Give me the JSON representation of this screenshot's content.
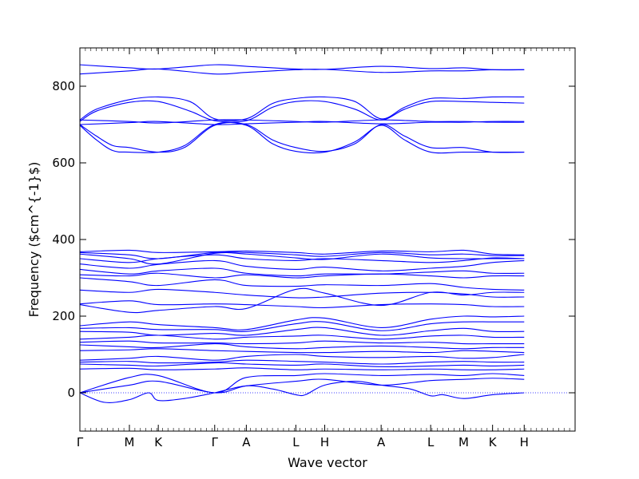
{
  "chart_data": {
    "type": "line",
    "title": "",
    "xlabel": "Wave vector",
    "ylabel": "Frequency ($cm^{-1}$)",
    "ylim": [
      -100,
      900
    ],
    "xlim": [
      0,
      18
    ],
    "grid": false,
    "line_color": "#0000ff",
    "zero_line_color": "#0000ff",
    "x_ticks": [
      {
        "label": "Γ",
        "x": 0
      },
      {
        "label": "M",
        "x": 1.8
      },
      {
        "label": "K",
        "x": 2.85
      },
      {
        "label": "Γ",
        "x": 4.9
      },
      {
        "label": "A",
        "x": 6.05
      },
      {
        "label": "L",
        "x": 7.85
      },
      {
        "label": "H",
        "x": 8.9
      },
      {
        "label": "A",
        "x": 10.95
      },
      {
        "label": "L",
        "x": 12.75
      },
      {
        "label": "M",
        "x": 13.95
      },
      {
        "label": "K",
        "x": 15.0
      },
      {
        "label": "H",
        "x": 16.15
      }
    ],
    "y_ticks": [
      0,
      200,
      400,
      600,
      800
    ],
    "series": [
      {
        "x": [
          0,
          1.8,
          2.85,
          4.9,
          6.05,
          7.85,
          8.9,
          10.95,
          12.75,
          13.95,
          15.0,
          16.15
        ],
        "values": [
          856,
          848,
          845,
          856,
          852,
          845,
          844,
          852,
          846,
          848,
          843,
          843
        ]
      },
      {
        "x": [
          0,
          1.8,
          2.85,
          4.9,
          6.05,
          7.85,
          8.9,
          10.95,
          12.75,
          13.95,
          15.0,
          16.15
        ],
        "values": [
          832,
          840,
          845,
          832,
          836,
          843,
          844,
          836,
          840,
          840,
          843,
          843
        ]
      },
      {
        "x": [
          0,
          0.6,
          1.8,
          2.85,
          4.0,
          4.9,
          6.05,
          7.0,
          7.85,
          8.9,
          10.0,
          10.95,
          11.8,
          12.75,
          13.95,
          15.0,
          16.15
        ],
        "values": [
          712,
          740,
          765,
          772,
          760,
          715,
          715,
          755,
          768,
          772,
          760,
          715,
          745,
          768,
          768,
          772,
          772
        ]
      },
      {
        "x": [
          0,
          0.6,
          1.8,
          2.85,
          4.0,
          4.9,
          6.05,
          7.0,
          7.85,
          8.9,
          10.0,
          10.95,
          11.8,
          12.75,
          13.95,
          15.0,
          16.15
        ],
        "values": [
          708,
          735,
          758,
          760,
          735,
          710,
          710,
          745,
          760,
          760,
          740,
          712,
          740,
          760,
          760,
          758,
          756
        ]
      },
      {
        "x": [
          0,
          1.8,
          2.85,
          4.9,
          6.05,
          7.85,
          8.9,
          10.95,
          12.75,
          13.95,
          15.0,
          16.15
        ],
        "values": [
          712,
          708,
          704,
          712,
          712,
          708,
          706,
          712,
          708,
          708,
          706,
          706
        ]
      },
      {
        "x": [
          0,
          1.8,
          2.85,
          4.9,
          6.05,
          7.85,
          8.9,
          10.95,
          12.75,
          13.95,
          15.0,
          16.15
        ],
        "values": [
          700,
          705,
          708,
          700,
          702,
          706,
          708,
          702,
          706,
          706,
          708,
          708
        ]
      },
      {
        "x": [
          0,
          0.6,
          1.2,
          1.8,
          2.85,
          3.8,
          4.9,
          6.05,
          7.0,
          7.85,
          8.9,
          10.0,
          10.95,
          11.8,
          12.75,
          13.95,
          15.0,
          16.15
        ],
        "values": [
          700,
          670,
          645,
          640,
          628,
          640,
          698,
          700,
          660,
          640,
          630,
          650,
          700,
          670,
          640,
          640,
          628,
          628
        ]
      },
      {
        "x": [
          0,
          0.6,
          1.2,
          1.8,
          2.85,
          3.8,
          4.9,
          6.05,
          7.0,
          7.85,
          8.9,
          10.0,
          10.95,
          11.8,
          12.75,
          13.95,
          15.0,
          16.15
        ],
        "values": [
          698,
          660,
          632,
          628,
          628,
          645,
          700,
          698,
          650,
          630,
          628,
          655,
          698,
          660,
          628,
          628,
          628,
          628
        ]
      },
      {
        "x": [
          0,
          1.8,
          2.85,
          4.9,
          6.05,
          7.85,
          8.9,
          10.95,
          12.75,
          13.95,
          15.0,
          16.15
        ],
        "values": [
          368,
          372,
          366,
          368,
          370,
          366,
          362,
          370,
          368,
          372,
          362,
          360
        ]
      },
      {
        "x": [
          0,
          1.8,
          2.85,
          4.9,
          6.05,
          7.85,
          8.9,
          10.95,
          12.75,
          13.95,
          15.0,
          16.15
        ],
        "values": [
          366,
          360,
          350,
          366,
          366,
          360,
          356,
          366,
          360,
          362,
          358,
          358
        ]
      },
      {
        "x": [
          0,
          1.8,
          2.85,
          4.9,
          6.05,
          7.85,
          8.9,
          10.95,
          12.75,
          13.95,
          15.0,
          16.15
        ],
        "values": [
          362,
          350,
          336,
          364,
          362,
          352,
          348,
          362,
          352,
          350,
          350,
          350
        ]
      },
      {
        "x": [
          0,
          1.8,
          2.85,
          4.9,
          6.05,
          7.85,
          8.9,
          10.95,
          12.75,
          13.95,
          15.0,
          16.15
        ],
        "values": [
          350,
          340,
          350,
          360,
          350,
          345,
          350,
          345,
          340,
          345,
          352,
          350
        ]
      },
      {
        "x": [
          0,
          1.8,
          2.85,
          4.9,
          6.05,
          7.85,
          8.9,
          10.95,
          12.75,
          13.95,
          15.0,
          16.15
        ],
        "values": [
          336,
          325,
          335,
          345,
          330,
          322,
          328,
          318,
          325,
          330,
          340,
          345
        ]
      },
      {
        "x": [
          0,
          1.8,
          2.85,
          4.9,
          6.05,
          7.85,
          8.9,
          10.95,
          12.75,
          13.95,
          15.0,
          16.15
        ],
        "values": [
          322,
          310,
          318,
          325,
          312,
          305,
          310,
          310,
          315,
          318,
          312,
          312
        ]
      },
      {
        "x": [
          0,
          1.8,
          2.85,
          4.9,
          6.05,
          7.85,
          8.9,
          10.95,
          12.75,
          13.95,
          15.0,
          16.15
        ],
        "values": [
          308,
          305,
          312,
          300,
          308,
          300,
          305,
          310,
          305,
          300,
          305,
          305
        ]
      },
      {
        "x": [
          0,
          1.8,
          2.85,
          4.9,
          6.05,
          7.85,
          8.9,
          10.95,
          12.75,
          13.95,
          15.0,
          16.15
        ],
        "values": [
          300,
          290,
          280,
          295,
          280,
          278,
          282,
          280,
          285,
          275,
          270,
          268
        ]
      },
      {
        "x": [
          0,
          1.8,
          2.85,
          4.9,
          6.05,
          7.85,
          8.9,
          10.95,
          12.75,
          13.95,
          15.0,
          16.15
        ],
        "values": [
          268,
          262,
          270,
          262,
          255,
          248,
          250,
          260,
          262,
          258,
          250,
          250
        ]
      },
      {
        "x": [
          0,
          1.8,
          2.85,
          4.9,
          6.05,
          7.85,
          8.9,
          10.95,
          12.75,
          13.95,
          15.0,
          16.15
        ],
        "values": [
          232,
          240,
          230,
          232,
          230,
          225,
          222,
          230,
          232,
          230,
          225,
          225
        ]
      },
      {
        "x": [
          0,
          1.8,
          2.85,
          4.9,
          6.05,
          7.85,
          8.9,
          10.95,
          12.75,
          13.95,
          15.0,
          16.15
        ],
        "values": [
          230,
          210,
          215,
          225,
          220,
          270,
          260,
          228,
          262,
          255,
          262,
          262
        ]
      },
      {
        "x": [
          0,
          1.8,
          2.85,
          4.9,
          6.05,
          7.85,
          8.9,
          10.95,
          12.75,
          13.95,
          15.0,
          16.15
        ],
        "values": [
          175,
          185,
          178,
          170,
          165,
          190,
          195,
          170,
          192,
          200,
          198,
          200
        ]
      },
      {
        "x": [
          0,
          1.8,
          2.85,
          4.9,
          6.05,
          7.85,
          8.9,
          10.95,
          12.75,
          13.95,
          15.0,
          16.15
        ],
        "values": [
          168,
          170,
          165,
          165,
          160,
          180,
          185,
          162,
          180,
          185,
          185,
          185
        ]
      },
      {
        "x": [
          0,
          1.8,
          2.85,
          4.9,
          6.05,
          7.85,
          8.9,
          10.95,
          12.75,
          13.95,
          15.0,
          16.15
        ],
        "values": [
          160,
          158,
          150,
          155,
          150,
          165,
          170,
          150,
          162,
          168,
          160,
          160
        ]
      },
      {
        "x": [
          0,
          1.8,
          2.85,
          4.9,
          6.05,
          7.85,
          8.9,
          10.95,
          12.75,
          13.95,
          15.0,
          16.15
        ],
        "values": [
          140,
          145,
          150,
          140,
          145,
          148,
          150,
          140,
          148,
          150,
          145,
          145
        ]
      },
      {
        "x": [
          0,
          1.8,
          2.85,
          4.9,
          6.05,
          7.85,
          8.9,
          10.95,
          12.75,
          13.95,
          15.0,
          16.15
        ],
        "values": [
          132,
          135,
          130,
          130,
          128,
          130,
          135,
          130,
          132,
          128,
          128,
          128
        ]
      },
      {
        "x": [
          0,
          1.8,
          2.85,
          4.9,
          6.05,
          7.85,
          8.9,
          10.95,
          12.75,
          13.95,
          15.0,
          16.15
        ],
        "values": [
          125,
          120,
          118,
          128,
          120,
          115,
          118,
          122,
          118,
          115,
          118,
          118
        ]
      },
      {
        "x": [
          0,
          1.8,
          2.85,
          4.9,
          6.05,
          7.85,
          8.9,
          10.95,
          12.75,
          13.95,
          15.0,
          16.15
        ],
        "values": [
          110,
          112,
          115,
          110,
          108,
          105,
          105,
          108,
          105,
          110,
          108,
          105
        ]
      },
      {
        "x": [
          0,
          1.8,
          2.85,
          4.9,
          6.05,
          7.85,
          8.9,
          10.95,
          12.75,
          13.95,
          15.0,
          16.15
        ],
        "values": [
          85,
          90,
          95,
          85,
          95,
          100,
          95,
          92,
          95,
          90,
          92,
          100
        ]
      },
      {
        "x": [
          0,
          1.8,
          2.85,
          4.9,
          6.05,
          7.85,
          8.9,
          10.95,
          12.75,
          13.95,
          15.0,
          16.15
        ],
        "values": [
          80,
          82,
          78,
          80,
          85,
          82,
          80,
          75,
          80,
          82,
          80,
          80
        ]
      },
      {
        "x": [
          0,
          1.8,
          2.85,
          4.9,
          6.05,
          7.85,
          8.9,
          10.95,
          12.75,
          13.95,
          15.0,
          16.15
        ],
        "values": [
          75,
          72,
          70,
          78,
          75,
          72,
          75,
          68,
          70,
          72,
          70,
          72
        ]
      },
      {
        "x": [
          0,
          1.8,
          2.85,
          4.9,
          6.05,
          7.85,
          8.9,
          10.95,
          12.75,
          13.95,
          15.0,
          16.15
        ],
        "values": [
          62,
          64,
          60,
          62,
          65,
          60,
          62,
          60,
          62,
          60,
          60,
          62
        ]
      },
      {
        "x": [
          0,
          1.8,
          2.85,
          4.9,
          6.05,
          7.85,
          8.9,
          10.95,
          12.75,
          13.95,
          15.0,
          16.15
        ],
        "values": [
          0,
          40,
          45,
          0,
          40,
          45,
          50,
          45,
          48,
          45,
          50,
          45
        ]
      },
      {
        "x": [
          0,
          1.8,
          2.85,
          4.9,
          6.05,
          7.85,
          8.9,
          10.95,
          12.75,
          13.95,
          15.0,
          16.15
        ],
        "values": [
          0,
          20,
          30,
          0,
          18,
          30,
          35,
          20,
          32,
          35,
          38,
          35
        ]
      },
      {
        "x": [
          0,
          0.9,
          1.8,
          2.5,
          2.85,
          3.8,
          4.9,
          6.05,
          7.0,
          7.85,
          8.2,
          8.9,
          10.0,
          10.95,
          12.0,
          12.75,
          13.2,
          13.95,
          15.0,
          16.15
        ],
        "values": [
          0,
          -25,
          -18,
          0,
          -20,
          -15,
          0,
          18,
          10,
          -5,
          -5,
          20,
          30,
          20,
          10,
          -8,
          -5,
          -15,
          -5,
          0
        ]
      }
    ]
  }
}
